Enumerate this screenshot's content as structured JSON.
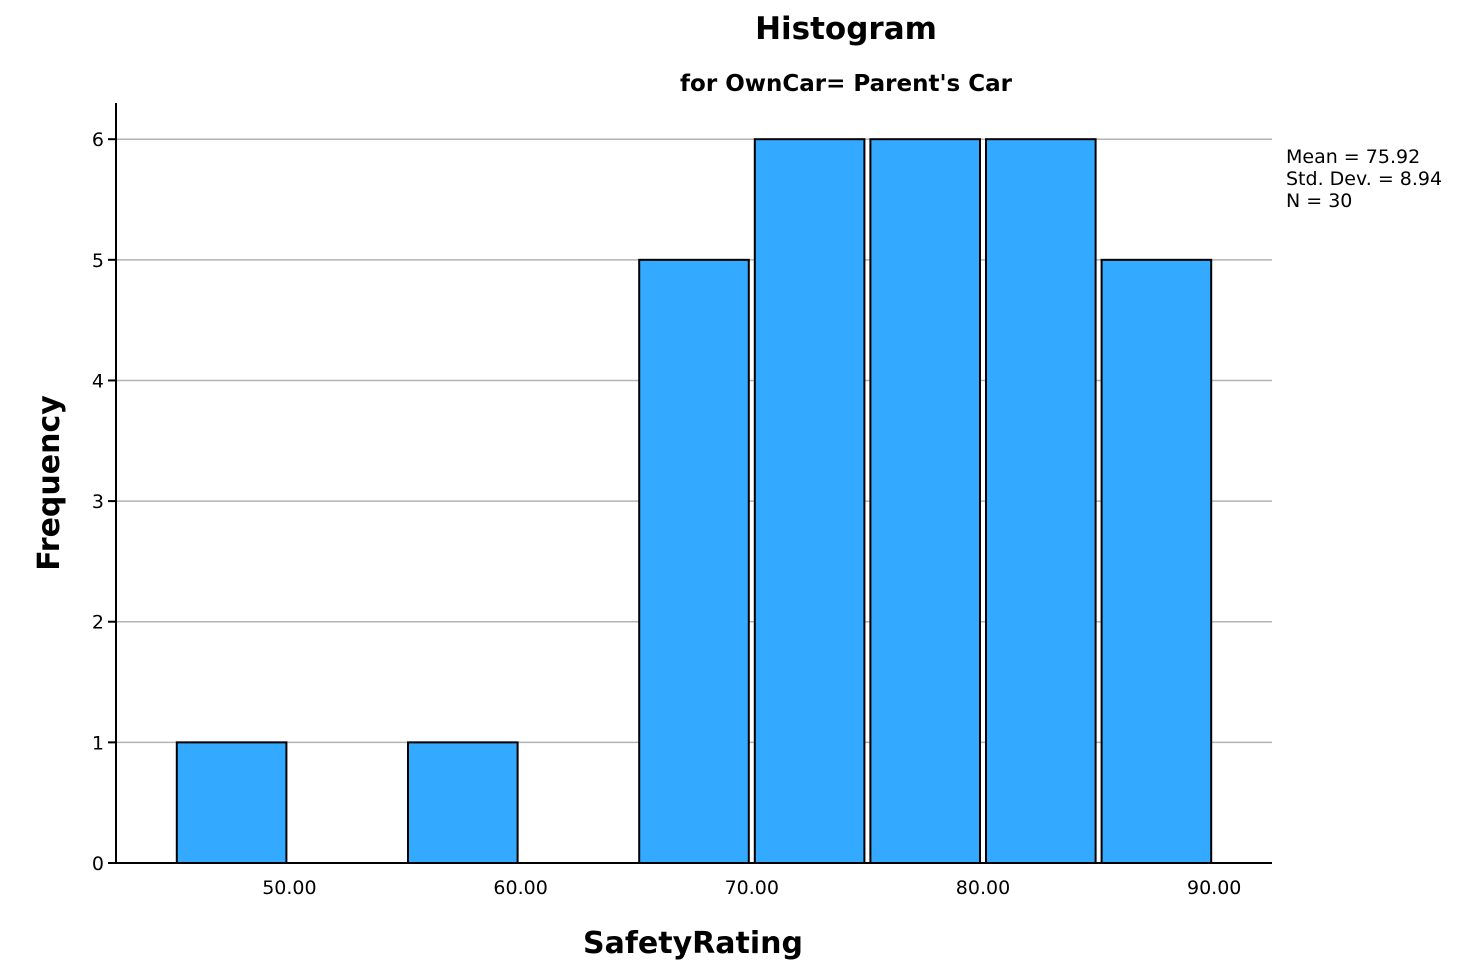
{
  "chart_data": {
    "type": "bar",
    "title": "Histogram",
    "subtitle": "for OwnCar= Parent's Car",
    "xlabel": "SafetyRating",
    "ylabel": "Frequency",
    "xlim": [
      42.5,
      92.5
    ],
    "ylim": [
      0,
      6.3
    ],
    "bin_width": 5,
    "y_ticks": [
      0,
      1,
      2,
      3,
      4,
      5,
      6
    ],
    "x_ticks": [
      {
        "value": 50,
        "label": "50.00"
      },
      {
        "value": 60,
        "label": "60.00"
      },
      {
        "value": 70,
        "label": "70.00"
      },
      {
        "value": 80,
        "label": "80.00"
      },
      {
        "value": 90,
        "label": "90.00"
      }
    ],
    "bins": [
      {
        "start": 45,
        "end": 50,
        "count": 1
      },
      {
        "start": 55,
        "end": 60,
        "count": 1
      },
      {
        "start": 65,
        "end": 70,
        "count": 5
      },
      {
        "start": 70,
        "end": 75,
        "count": 6
      },
      {
        "start": 75,
        "end": 80,
        "count": 6
      },
      {
        "start": 80,
        "end": 85,
        "count": 6
      },
      {
        "start": 85,
        "end": 90,
        "count": 5
      }
    ],
    "bar_color": "#33aaff",
    "grid": true,
    "stats": [
      "Mean = 75.92",
      "Std. Dev. = 8.94",
      "N = 30"
    ],
    "legend_placement": "top-right"
  }
}
